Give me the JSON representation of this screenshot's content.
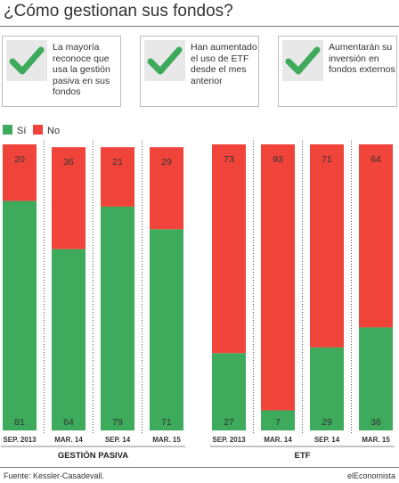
{
  "title": "¿Cómo gestionan sus fondos?",
  "cards": [
    {
      "text": "La mayoría reconoce que usa la gestión pasiva en sus fondos",
      "icon": "check-icon"
    },
    {
      "text": "Han aumentado el uso de ETF desde el mes anterior",
      "icon": "check-icon"
    },
    {
      "text": "Aumentarán su inversión en fondos externos",
      "icon": "check-icon"
    }
  ],
  "legend": [
    {
      "label": "Sí",
      "color": "#3daa5c"
    },
    {
      "label": "No",
      "color": "#f0443a"
    }
  ],
  "chart_data": [
    {
      "type": "bar",
      "stacked": true,
      "title": "GESTIÓN PASIVA",
      "categories": [
        "SEP. 2013",
        "MAR. 14",
        "SEP. 14",
        "MAR. 15"
      ],
      "series": [
        {
          "name": "Sí",
          "values": [
            81,
            64,
            79,
            71
          ],
          "color": "#3daa5c"
        },
        {
          "name": "No",
          "values": [
            20,
            36,
            21,
            29
          ],
          "color": "#f0443a"
        }
      ]
    },
    {
      "type": "bar",
      "stacked": true,
      "title": "ETF",
      "categories": [
        "SEP. 2013",
        "MAR. 14",
        "SEP. 14",
        "MAR. 15"
      ],
      "series": [
        {
          "name": "Sí",
          "values": [
            27,
            7,
            29,
            36
          ],
          "color": "#3daa5c"
        },
        {
          "name": "No",
          "values": [
            73,
            93,
            71,
            64
          ],
          "color": "#f0443a"
        }
      ]
    }
  ],
  "footer": {
    "source": "Fuente: Kessler-Casadevall.",
    "brand": "elEconomista"
  }
}
